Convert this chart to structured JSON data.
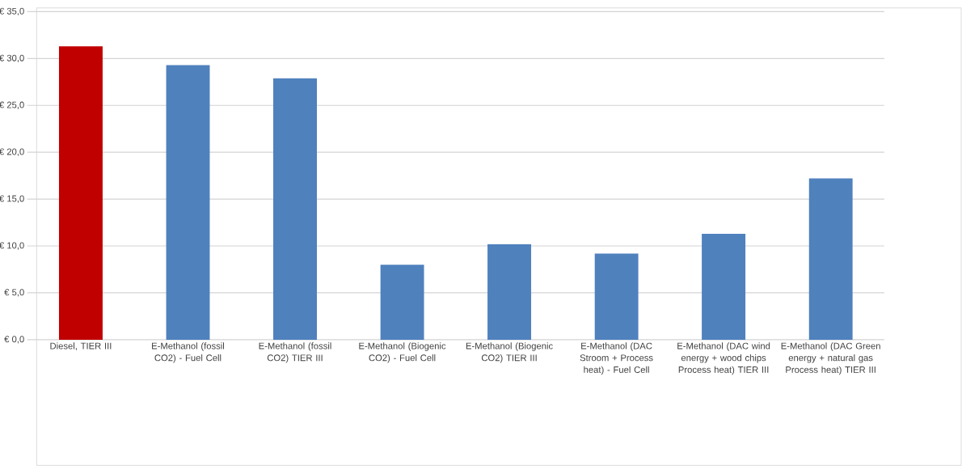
{
  "chart_data": {
    "type": "bar",
    "categories": [
      "Diesel, TIER III",
      "E-Methanol (fossil CO2) - Fuel Cell",
      "E-Methanol (fossil CO2) TIER III",
      "E-Methanol (Biogenic CO2) - Fuel Cell",
      "E-Methanol (Biogenic CO2) TIER III",
      "E-Methanol (DAC Stroom + Process heat) - Fuel Cell",
      "E-Methanol (DAC wind energy + wood chips Process heat) TIER III",
      "E-Methanol (DAC Green energy + natural gas Process heat) TIER III"
    ],
    "values": [
      31.3,
      29.3,
      27.9,
      8.0,
      10.2,
      9.2,
      11.3,
      17.2
    ],
    "colors": [
      "#c00000",
      "#4f81bd",
      "#4f81bd",
      "#4f81bd",
      "#4f81bd",
      "#4f81bd",
      "#4f81bd",
      "#4f81bd"
    ],
    "ylim": [
      0,
      35
    ],
    "yticks": [
      {
        "value": 0,
        "label": "€ 0,0"
      },
      {
        "value": 5,
        "label": "€ 5,0"
      },
      {
        "value": 10,
        "label": "€ 10,0"
      },
      {
        "value": 15,
        "label": "€ 15,0"
      },
      {
        "value": 20,
        "label": "€ 20,0"
      },
      {
        "value": 25,
        "label": "€ 25,0"
      },
      {
        "value": 30,
        "label": "€ 30,0"
      },
      {
        "value": 35,
        "label": "€ 35,0"
      }
    ],
    "grid": "y"
  }
}
